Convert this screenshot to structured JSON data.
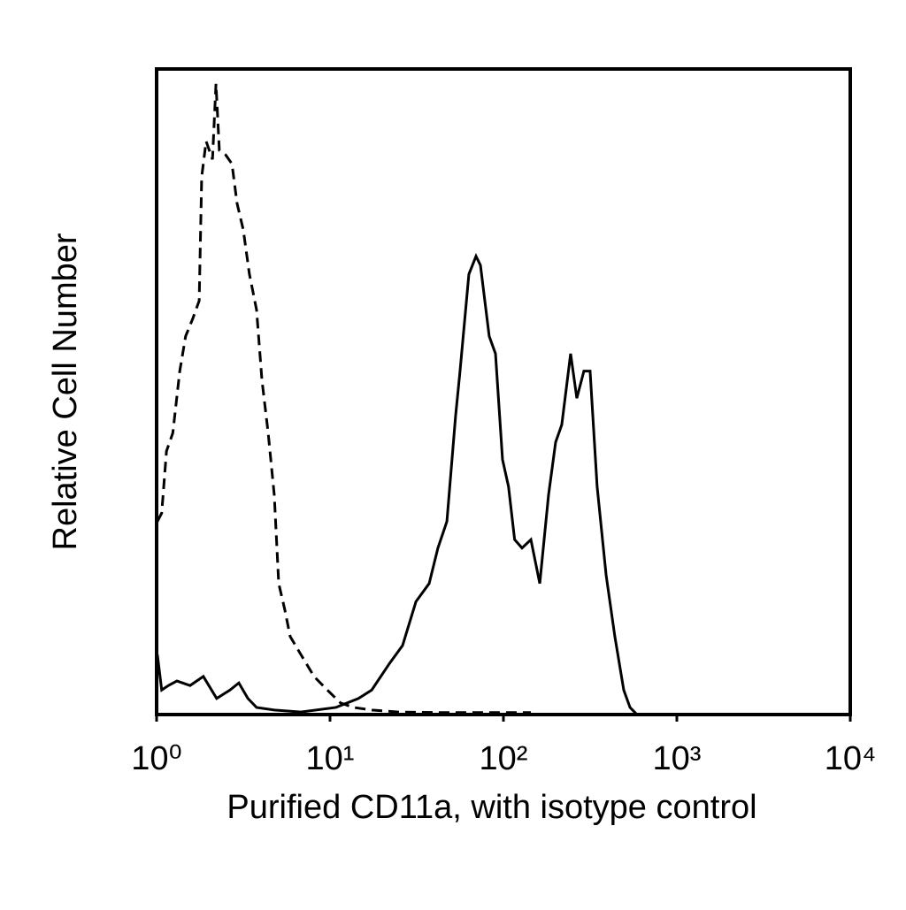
{
  "chart_data": {
    "type": "line",
    "xlabel": "Purified CD11a, with isotype control",
    "ylabel": "Relative Cell Number",
    "xscale": "log",
    "xlim": [
      1,
      10000
    ],
    "xticks": [
      {
        "value": 1,
        "label": "10⁰"
      },
      {
        "value": 10,
        "label": "10¹"
      },
      {
        "value": 100,
        "label": "10²"
      },
      {
        "value": 1000,
        "label": "10³"
      },
      {
        "value": 10000,
        "label": "10⁴"
      }
    ],
    "ylim": [
      0,
      100
    ],
    "series": [
      {
        "color": "#000000",
        "dash": true,
        "x": [
          1.01,
          1.07,
          1.14,
          1.24,
          1.36,
          1.47,
          1.62,
          1.76,
          1.82,
          1.93,
          2.1,
          2.2,
          2.3,
          2.5,
          2.72,
          2.91,
          3.16,
          3.43,
          3.77,
          4.05,
          4.4,
          4.77,
          5.06,
          5.49,
          5.89,
          6.79,
          8.09,
          9.65,
          11.5,
          13.7,
          17.4,
          24.7,
          44.5,
          144
        ],
        "values": [
          29.9,
          31.2,
          40.8,
          43.6,
          53.2,
          58.6,
          61.4,
          64.1,
          83.3,
          88.8,
          86.0,
          97.7,
          87.4,
          86.7,
          85.3,
          79.2,
          75.1,
          68.2,
          62.7,
          51.8,
          43.6,
          34.0,
          20.3,
          16.2,
          12.1,
          9.3,
          5.9,
          3.8,
          1.8,
          1.1,
          0.7,
          0.4,
          0.3,
          0.3
        ]
      },
      {
        "color": "#000000",
        "dash": false,
        "x": [
          1.01,
          1.07,
          1.17,
          1.31,
          1.56,
          1.86,
          2.22,
          2.65,
          2.98,
          3.36,
          3.77,
          4.77,
          6.79,
          10.8,
          14.6,
          17.4,
          22.0,
          26.2,
          31.3,
          37.3,
          41.9,
          47.2,
          53.0,
          56.2,
          63.2,
          69.5,
          73.7,
          78.1,
          82.8,
          90.0,
          98.8,
          107,
          116,
          128,
          144,
          162,
          182,
          200,
          217,
          244,
          265,
          291,
          316,
          347,
          391,
          439,
          494,
          537,
          589
        ],
        "values": [
          9.3,
          3.8,
          4.5,
          5.2,
          4.5,
          5.9,
          2.5,
          3.8,
          4.9,
          2.5,
          1.1,
          0.7,
          0.4,
          1.1,
          2.5,
          3.8,
          7.9,
          10.7,
          17.5,
          20.3,
          25.8,
          29.9,
          46.3,
          53.2,
          68.2,
          71.0,
          69.6,
          64.1,
          58.6,
          55.9,
          39.5,
          35.3,
          27.1,
          25.8,
          27.1,
          20.3,
          34.0,
          42.2,
          44.9,
          55.9,
          49.0,
          53.2,
          53.2,
          35.3,
          21.6,
          12.1,
          3.8,
          1.1,
          0
        ]
      }
    ]
  }
}
